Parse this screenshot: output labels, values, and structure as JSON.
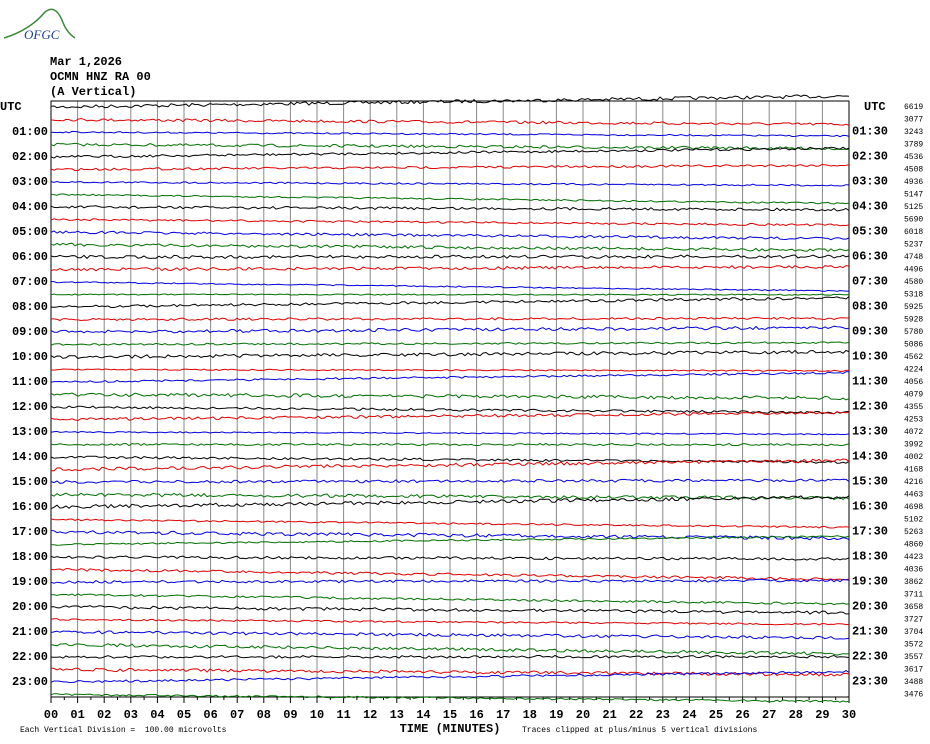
{
  "logo": "OFGC",
  "header": {
    "date": "Mar 1,2026",
    "station": "OCMN HNZ RA 00",
    "component": "(A Vertical)"
  },
  "left_axis": {
    "title": "UTC",
    "labels": [
      "01:00",
      "02:00",
      "03:00",
      "04:00",
      "05:00",
      "06:00",
      "07:00",
      "08:00",
      "09:00",
      "10:00",
      "11:00",
      "12:00",
      "13:00",
      "14:00",
      "15:00",
      "16:00",
      "17:00",
      "18:00",
      "19:00",
      "20:00",
      "21:00",
      "22:00",
      "23:00"
    ]
  },
  "right_axis": {
    "title": "UTC",
    "labels": [
      "01:30",
      "02:30",
      "03:30",
      "04:30",
      "05:30",
      "06:30",
      "07:30",
      "08:30",
      "09:30",
      "10:30",
      "11:30",
      "12:30",
      "13:30",
      "14:30",
      "15:30",
      "16:30",
      "17:30",
      "18:30",
      "19:30",
      "20:30",
      "21:30",
      "22:30",
      "23:30"
    ]
  },
  "row_values": [
    "6619",
    "3077",
    "3243",
    "3789",
    "4536",
    "4508",
    "4936",
    "5147",
    "5125",
    "5690",
    "6018",
    "5237",
    "4748",
    "4496",
    "4580",
    "5318",
    "5925",
    "5928",
    "5780",
    "5086",
    "4562",
    "4224",
    "4056",
    "4079",
    "4355",
    "4253",
    "4072",
    "3992",
    "4002",
    "4168",
    "4216",
    "4463",
    "4698",
    "5102",
    "5263",
    "4860",
    "4423",
    "4036",
    "3862",
    "3711",
    "3658",
    "3727",
    "3704",
    "3572",
    "3557",
    "3617",
    "3488",
    "3476"
  ],
  "x_axis": {
    "title": "TIME (MINUTES)",
    "ticks": [
      "00",
      "01",
      "02",
      "03",
      "04",
      "05",
      "06",
      "07",
      "08",
      "09",
      "10",
      "11",
      "12",
      "13",
      "14",
      "15",
      "16",
      "17",
      "18",
      "19",
      "20",
      "21",
      "22",
      "23",
      "24",
      "25",
      "26",
      "27",
      "28",
      "29",
      "30"
    ]
  },
  "footer": {
    "scale": "Each Vertical Division =  100.00 microvolts",
    "clip": "Traces clipped at plus/minus 5 vertical divisions"
  },
  "trace_colors": [
    "#000000",
    "#e00000",
    "#0000e0",
    "#007000"
  ]
}
